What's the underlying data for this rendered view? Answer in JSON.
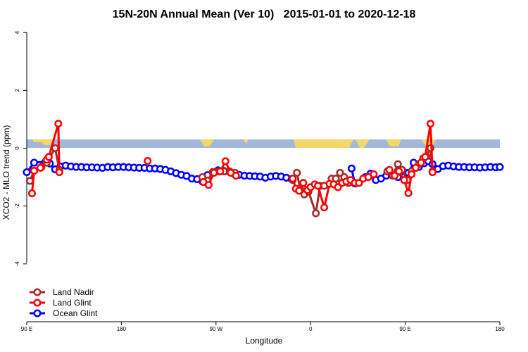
{
  "chart_data": {
    "type": "line",
    "title": "15N-20N Annual Mean (Ver 10)   2015-01-01 to 2020-12-18",
    "x_label": "Longitude",
    "y_label": "XCO2 - MLO trend (ppm)",
    "xlim": [
      90,
      540
    ],
    "ylim": [
      -6,
      4.2
    ],
    "xticks": [
      {
        "value": 90,
        "label": "90 E"
      },
      180,
      {
        "value": 270,
        "label": "90 W"
      },
      {
        "value": 360,
        "label": "0"
      },
      {
        "value": 450,
        "label": "90 E"
      },
      {
        "value": 540,
        "label": "180"
      }
    ],
    "yticks": [
      -4,
      -2,
      0,
      2,
      4
    ],
    "legend": "bottomleft",
    "series": [
      {
        "name": "Land Nadir",
        "color": "#a52a2a",
        "x": [
          93,
          97,
          104,
          109,
          117,
          121,
          null,
          257,
          262,
          267,
          272,
          278,
          283,
          288,
          null,
          343,
          347,
          350,
          354,
          358,
          365,
          369,
          373,
          380,
          384,
          388,
          392,
          396,
          null,
          433,
          438,
          443,
          447,
          452,
          456,
          463,
          467,
          470,
          474,
          476
        ],
        "values": [
          -1.13,
          -0.78,
          -0.65,
          -0.5,
          0.0,
          -0.75,
          null,
          -1.0,
          -1.12,
          -0.82,
          -0.8,
          -0.8,
          -0.8,
          -0.85,
          null,
          -1.1,
          -0.85,
          -1.4,
          -1.6,
          -1.5,
          -2.25,
          -1.3,
          -1.3,
          -1.05,
          -1.05,
          -0.85,
          -1.0,
          -1.2,
          null,
          -0.8,
          -0.95,
          -0.55,
          -0.75,
          -1.1,
          -0.8,
          -0.55,
          -0.35,
          -0.28,
          0.0,
          -0.8
        ]
      },
      {
        "name": "Land Glint",
        "color": "#ff0000",
        "x": [
          95,
          97,
          103,
          109,
          111,
          120,
          121,
          null,
          205,
          null,
          258,
          263,
          268,
          274,
          279,
          284,
          289,
          null,
          343,
          346,
          349,
          353,
          357,
          360,
          364,
          367,
          373,
          378,
          382,
          386,
          390,
          394,
          398,
          402,
          406,
          410,
          415,
          420,
          null,
          435,
          440,
          444,
          449,
          453,
          456,
          460,
          465,
          469,
          474,
          476
        ],
        "values": [
          -1.56,
          -0.78,
          -0.68,
          -0.4,
          -0.3,
          0.85,
          -0.83,
          null,
          -0.44,
          null,
          -1.17,
          -1.27,
          -0.85,
          -0.8,
          -0.45,
          -0.85,
          -0.95,
          null,
          -1.05,
          -1.4,
          -1.47,
          -1.2,
          -1.45,
          -1.35,
          -1.25,
          -1.3,
          -2.05,
          -1.23,
          -1.25,
          -1.35,
          -1.2,
          -1.15,
          -1.1,
          -1.2,
          -1.2,
          -1.05,
          -1.0,
          -0.9,
          null,
          -0.75,
          -0.95,
          -0.8,
          -1.1,
          -1.55,
          -0.9,
          -0.68,
          -0.5,
          -0.3,
          0.85,
          -0.83
        ]
      },
      {
        "name": "Ocean Glint",
        "color": "#0000ff",
        "x": [
          90,
          97,
          108,
          112,
          117,
          122,
          127,
          132,
          137,
          142,
          147,
          152,
          157,
          162,
          167,
          172,
          177,
          182,
          187,
          192,
          197,
          202,
          207,
          212,
          217,
          222,
          227,
          232,
          237,
          242,
          247,
          252,
          257,
          262,
          267,
          272,
          277,
          282,
          287,
          292,
          297,
          302,
          307,
          312,
          317,
          322,
          327,
          332,
          337,
          342,
          null,
          399,
          402,
          412,
          417,
          422,
          427,
          432,
          437,
          443,
          448,
          453,
          458,
          463,
          468,
          472,
          476,
          481,
          486,
          491,
          496,
          501,
          506,
          511,
          516,
          521,
          526,
          531,
          536,
          540
        ],
        "values": [
          -0.83,
          -0.5,
          -0.46,
          -0.53,
          -0.73,
          -0.63,
          -0.6,
          -0.63,
          -0.65,
          -0.65,
          -0.66,
          -0.66,
          -0.67,
          -0.68,
          -0.65,
          -0.66,
          -0.65,
          -0.65,
          -0.66,
          -0.67,
          -0.68,
          -0.68,
          -0.7,
          -0.7,
          -0.72,
          -0.75,
          -0.8,
          -0.86,
          -0.92,
          -0.96,
          -1.05,
          -1.07,
          -1.15,
          -0.93,
          -0.84,
          -0.76,
          -0.78,
          -0.8,
          -0.88,
          -0.92,
          -0.95,
          -0.96,
          -0.97,
          -0.98,
          -1.02,
          -0.98,
          -0.96,
          -0.98,
          -1.02,
          -1.07,
          null,
          -0.7,
          -1.22,
          -1.0,
          -0.88,
          -1.1,
          -1.05,
          -0.95,
          -0.93,
          -1.0,
          -0.8,
          -0.85,
          -0.5,
          -0.65,
          -0.52,
          -0.45,
          -0.55,
          -0.72,
          -0.62,
          -0.6,
          -0.63,
          -0.65,
          -0.65,
          -0.66,
          -0.66,
          -0.67,
          -0.66,
          -0.65,
          -0.66,
          -0.65
        ]
      }
    ]
  }
}
